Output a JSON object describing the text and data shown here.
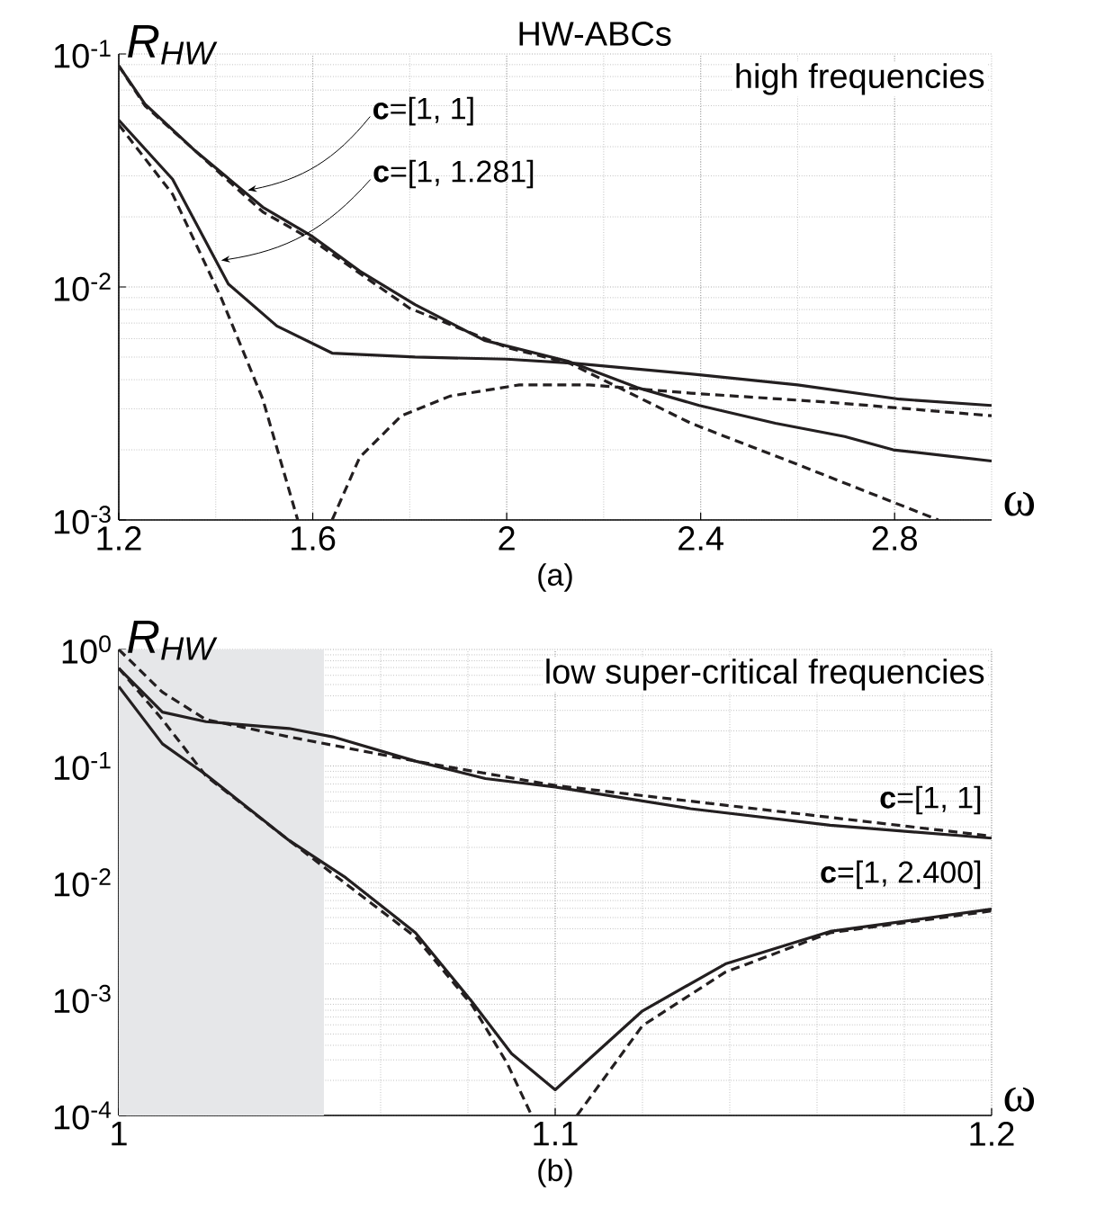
{
  "chart_data": [
    {
      "type": "line",
      "title": "HW-ABCs",
      "ylabel": "R$_{HW}$",
      "xlabel": "ω",
      "annotations": [
        "high frequencies",
        {
          "text": "**c**=[1, 1]",
          "x": 1.466,
          "y": 0.026
        },
        {
          "text": "**c**=[1, 1.281]",
          "x": 1.411,
          "y": 0.013
        },
        "(a)"
      ],
      "xlim": [
        1.2,
        3.0
      ],
      "ylim": [
        0.001,
        0.1
      ],
      "log": "y",
      "grid": true,
      "xticks": [
        1.2,
        1.6,
        2,
        2.4,
        2.8
      ],
      "yticks": [
        {
          "value": 0.001,
          "label": "10$^{-3}$"
        },
        {
          "value": 0.01,
          "label": "10$^{-2}$"
        },
        {
          "value": 0.1,
          "label": "10$^{-1}$"
        }
      ],
      "series": [
        {
          "color": "#231f20",
          "line_style": "solid",
          "x": [
            1.2,
            1.254,
            1.354,
            1.497,
            1.597,
            1.697,
            1.811,
            1.954,
            2.126,
            2.269,
            2.397,
            2.554,
            2.697,
            2.797,
            3.0
          ],
          "values": [
            0.089,
            0.061,
            0.039,
            0.022,
            0.0166,
            0.0117,
            0.0084,
            0.0059,
            0.0048,
            0.0037,
            0.0031,
            0.0026,
            0.00228,
            0.002,
            0.00179
          ]
        },
        {
          "color": "#231f20",
          "line_style": "dashed",
          "x": [
            1.2,
            1.254,
            1.354,
            1.497,
            1.597,
            1.8,
            2.0,
            2.13,
            2.38,
            2.6,
            2.89
          ],
          "values": [
            0.089,
            0.06,
            0.039,
            0.021,
            0.016,
            0.0081,
            0.0055,
            0.0047,
            0.0026,
            0.00173,
            0.001
          ]
        },
        {
          "color": "#231f20",
          "line_style": "solid",
          "x": [
            1.2,
            1.311,
            1.426,
            1.526,
            1.64,
            1.811,
            2.0,
            2.14,
            2.397,
            2.6,
            2.81,
            3.0
          ],
          "values": [
            0.052,
            0.029,
            0.0103,
            0.0068,
            0.0052,
            0.005,
            0.0049,
            0.0047,
            0.0042,
            0.0038,
            0.0033,
            0.0031
          ]
        },
        {
          "color": "#231f20",
          "line_style": "dashed",
          "x": [
            1.2,
            1.311,
            1.411,
            1.497,
            1.569,
            1.6,
            1.64,
            1.697,
            1.783,
            1.883,
            2.026,
            2.17,
            2.38,
            2.666,
            3.0
          ],
          "values": [
            0.0497,
            0.025,
            0.009,
            0.0033,
            0.001,
            null,
            0.001,
            0.00186,
            0.0028,
            0.0034,
            0.0038,
            0.0038,
            0.0035,
            0.0032,
            0.0028
          ]
        }
      ]
    },
    {
      "type": "line",
      "ylabel": "R$_{HW}$",
      "xlabel": "ω",
      "annotations": [
        "low super-critical frequencies",
        {
          "text": "**c**=[1, 1]",
          "x": 1.2,
          "y": 0.024
        },
        {
          "text": "**c**=[1, 2.400]",
          "x": 1.2,
          "y": 0.0059
        },
        "(b)"
      ],
      "xlim": [
        1,
        1.2
      ],
      "ylim": [
        0.0001,
        1
      ],
      "log": "y",
      "grid": true,
      "xticks": [
        1,
        1.1,
        1.2
      ],
      "yticks": [
        {
          "value": 0.0001,
          "label": "10$^{-4}$"
        },
        {
          "value": 0.001,
          "label": "10$^{-3}$"
        },
        {
          "value": 0.01,
          "label": "10$^{-2}$"
        },
        {
          "value": 0.1,
          "label": "10$^{-1}$"
        },
        {
          "value": 1,
          "label": "10$^{0}$"
        }
      ],
      "bands": [
        {
          "axis": "x",
          "from": 1,
          "to": 1.047,
          "color": "#e6e7e9"
        }
      ],
      "series": [
        {
          "color": "#231f20",
          "line_style": "solid",
          "x": [
            1.0,
            1.01,
            1.02,
            1.039,
            1.049,
            1.068,
            1.084,
            1.1,
            1.131,
            1.163,
            1.2
          ],
          "values": [
            0.69,
            0.29,
            0.24,
            0.21,
            0.178,
            0.11,
            0.078,
            0.066,
            0.043,
            0.031,
            0.024
          ]
        },
        {
          "color": "#231f20",
          "line_style": "dashed",
          "x": [
            1.0,
            1.01,
            1.02,
            1.039,
            1.068,
            1.1,
            1.2
          ],
          "values": [
            1.0,
            0.43,
            0.25,
            0.178,
            0.11,
            0.068,
            0.025
          ]
        },
        {
          "color": "#231f20",
          "line_style": "solid",
          "x": [
            1.0,
            1.01,
            1.02,
            1.039,
            1.052,
            1.068,
            1.081,
            1.09,
            1.1,
            1.12,
            1.139,
            1.163,
            1.2
          ],
          "values": [
            0.48,
            0.155,
            0.084,
            0.023,
            0.011,
            0.0037,
            0.00094,
            0.00034,
            0.000166,
            0.00079,
            0.002,
            0.0038,
            0.0059
          ]
        },
        {
          "color": "#231f20",
          "line_style": "dashed",
          "x": [
            1.0,
            1.01,
            1.02,
            1.039,
            1.068,
            1.081,
            1.089,
            1.0946,
            1.1,
            1.105,
            1.12,
            1.139,
            1.163,
            1.2
          ],
          "values": [
            0.69,
            0.25,
            0.082,
            0.023,
            0.0034,
            0.00088,
            0.00028,
            0.0001,
            null,
            0.0001,
            0.00059,
            0.0017,
            0.0037,
            0.0057
          ]
        }
      ]
    }
  ]
}
